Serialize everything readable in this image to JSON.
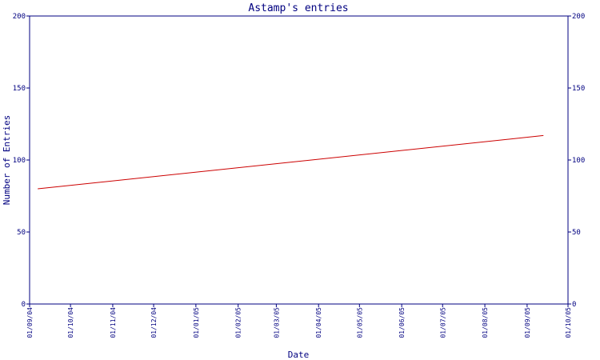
{
  "chart_data": {
    "type": "line",
    "title": "Astamp's entries",
    "xlabel": "Date",
    "ylabel": "Number of Entries",
    "ylim": [
      0,
      200
    ],
    "yticks": [
      0,
      50,
      100,
      150,
      200
    ],
    "xlim": [
      "2004-09-01",
      "2005-10-01"
    ],
    "xticks": [
      {
        "date": "2004-09-01",
        "label": "01/09/04"
      },
      {
        "date": "2004-10-01",
        "label": "01/10/04"
      },
      {
        "date": "2004-11-01",
        "label": "01/11/04"
      },
      {
        "date": "2004-12-01",
        "label": "01/12/04"
      },
      {
        "date": "2005-01-01",
        "label": "01/01/05"
      },
      {
        "date": "2005-02-01",
        "label": "01/02/05"
      },
      {
        "date": "2005-03-01",
        "label": "01/03/05"
      },
      {
        "date": "2005-04-01",
        "label": "01/04/05"
      },
      {
        "date": "2005-05-01",
        "label": "01/05/05"
      },
      {
        "date": "2005-06-01",
        "label": "01/06/05"
      },
      {
        "date": "2005-07-01",
        "label": "01/07/05"
      },
      {
        "date": "2005-08-01",
        "label": "01/08/05"
      },
      {
        "date": "2005-09-01",
        "label": "01/09/05"
      },
      {
        "date": "2005-10-01",
        "label": "01/10/05"
      }
    ],
    "series": [
      {
        "color": "#cc0000",
        "points": [
          {
            "x": "2004-09-07",
            "y": 80
          },
          {
            "x": "2005-09-13",
            "y": 117
          }
        ]
      }
    ],
    "grid": false,
    "axis_color": "#000080"
  }
}
